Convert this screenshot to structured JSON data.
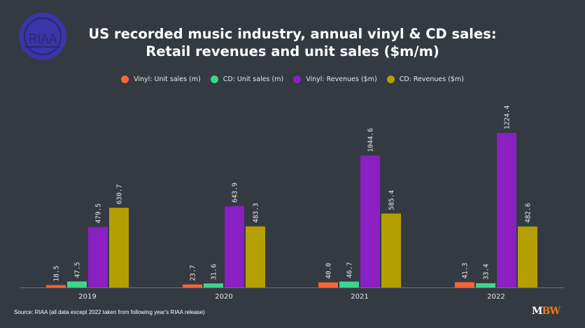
{
  "logo_text": "RIAA",
  "brand": {
    "m": "M",
    "bw": "BW"
  },
  "source": "Source: RIAA (all data except 2022 taken from following year's RIAA release)",
  "chart_data": {
    "type": "bar",
    "title_line1": "US recorded music industry, annual vinyl & CD sales:",
    "title_line2": "Retail revenues and unit sales ($m/m)",
    "categories": [
      "2019",
      "2020",
      "2021",
      "2022"
    ],
    "series": [
      {
        "name": "Vinyl: Unit sales (m)",
        "color": "#ff6633",
        "values": [
          18.5,
          23.7,
          40.0,
          41.3
        ]
      },
      {
        "name": "CD: Unit sales (m)",
        "color": "#3dd68c",
        "values": [
          47.5,
          31.6,
          46.7,
          33.4
        ]
      },
      {
        "name": "Vinyl: Revenues ($m)",
        "color": "#8a1fc2",
        "values": [
          479.5,
          643.9,
          1044.6,
          1224.4
        ]
      },
      {
        "name": "CD: Revenues ($m)",
        "color": "#b3a000",
        "values": [
          630.7,
          483.3,
          585.4,
          482.6
        ]
      }
    ],
    "ylim": [
      0,
      1400
    ],
    "grid": false,
    "legend": "top-center",
    "colors": {
      "background": "#343a42",
      "logo": "#3a35a8",
      "brand_orange": "#f07a1a"
    }
  }
}
